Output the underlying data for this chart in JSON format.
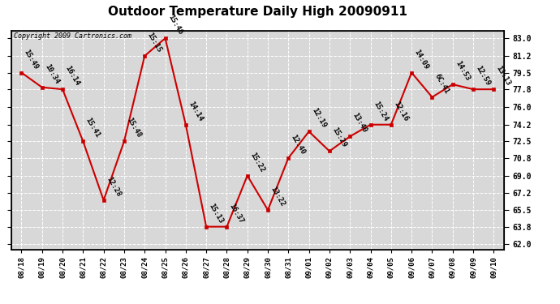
{
  "title": "Outdoor Temperature Daily High 20090911",
  "copyright": "Copyright 2009 Cartronics.com",
  "x_labels": [
    "08/18",
    "08/19",
    "08/20",
    "08/21",
    "08/22",
    "08/23",
    "08/24",
    "08/25",
    "08/26",
    "08/27",
    "08/28",
    "08/29",
    "08/30",
    "08/31",
    "09/01",
    "09/02",
    "09/03",
    "09/04",
    "09/05",
    "09/06",
    "09/07",
    "09/08",
    "09/09",
    "09/10"
  ],
  "y_values": [
    79.5,
    78.0,
    77.8,
    72.5,
    66.5,
    72.5,
    81.2,
    83.0,
    74.2,
    63.8,
    63.8,
    69.0,
    65.5,
    70.8,
    73.5,
    71.5,
    73.0,
    74.2,
    74.2,
    79.5,
    77.0,
    78.3,
    77.8,
    77.8
  ],
  "time_labels": [
    "15:49",
    "10:34",
    "16:14",
    "15:41",
    "12:28",
    "15:48",
    "15:15",
    "15:46",
    "14:14",
    "15:13",
    "16:37",
    "15:22",
    "13:22",
    "12:40",
    "12:19",
    "15:29",
    "13:40",
    "15:24",
    "12:16",
    "14:09",
    "6C:41",
    "14:53",
    "12:59",
    "13:13"
  ],
  "line_color": "#cc0000",
  "marker_color": "#cc0000",
  "bg_color": "#ffffff",
  "plot_bg_color": "#d8d8d8",
  "grid_color": "#ffffff",
  "y_ticks": [
    62.0,
    63.8,
    65.5,
    67.2,
    69.0,
    70.8,
    72.5,
    74.2,
    76.0,
    77.8,
    79.5,
    81.2,
    83.0
  ],
  "ylim": [
    61.5,
    83.8
  ],
  "title_fontsize": 11,
  "annotation_fontsize": 6.5,
  "copyright_fontsize": 6
}
